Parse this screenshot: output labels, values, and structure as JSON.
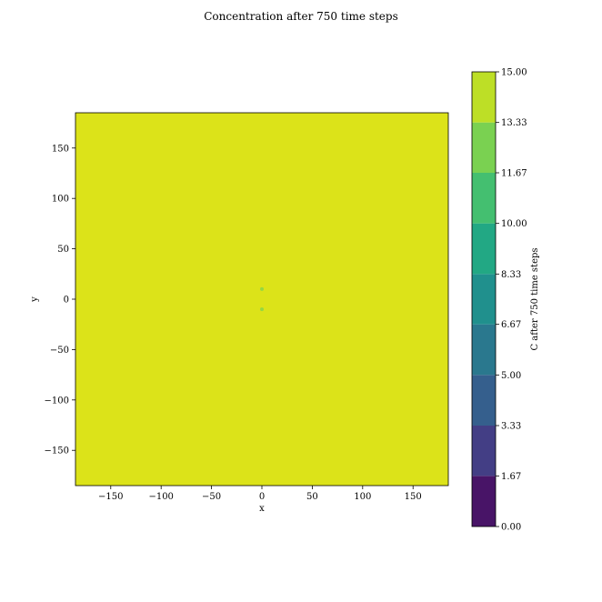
{
  "chart_data": {
    "type": "heatmap",
    "title": "Concentration after 750 time steps",
    "xlabel": "x",
    "ylabel": "y",
    "xlim": [
      -185,
      185
    ],
    "ylim": [
      -185,
      185
    ],
    "x_ticks": [
      -150,
      -100,
      -50,
      0,
      50,
      100,
      150
    ],
    "x_tick_labels": [
      "−150",
      "−100",
      "−50",
      "0",
      "50",
      "100",
      "150"
    ],
    "y_ticks": [
      -150,
      -100,
      -50,
      0,
      50,
      100,
      150
    ],
    "y_tick_labels": [
      "−150",
      "−100",
      "−50",
      "0",
      "50",
      "100",
      "150"
    ],
    "field_value_range": [
      13.33,
      15.0
    ],
    "field_color": "#dce319",
    "spots": [
      {
        "x": 0,
        "y": 10,
        "value_range": [
          11.67,
          13.33
        ],
        "color": "#95d840"
      },
      {
        "x": 0,
        "y": -10,
        "value_range": [
          11.67,
          13.33
        ],
        "color": "#95d840"
      }
    ],
    "colorbar": {
      "label": "C after 750 time steps",
      "levels": [
        0.0,
        1.67,
        3.33,
        5.0,
        6.67,
        8.33,
        10.0,
        11.67,
        13.33,
        15.0
      ],
      "level_labels": [
        "0.00",
        "1.67",
        "3.33",
        "5.00",
        "6.67",
        "8.33",
        "10.00",
        "11.67",
        "13.33",
        "15.00"
      ],
      "colors": [
        "#481467",
        "#433e85",
        "#355f8d",
        "#2a788e",
        "#20908d",
        "#22a884",
        "#44bf70",
        "#7ad151",
        "#bddf26"
      ]
    },
    "grid": false
  }
}
